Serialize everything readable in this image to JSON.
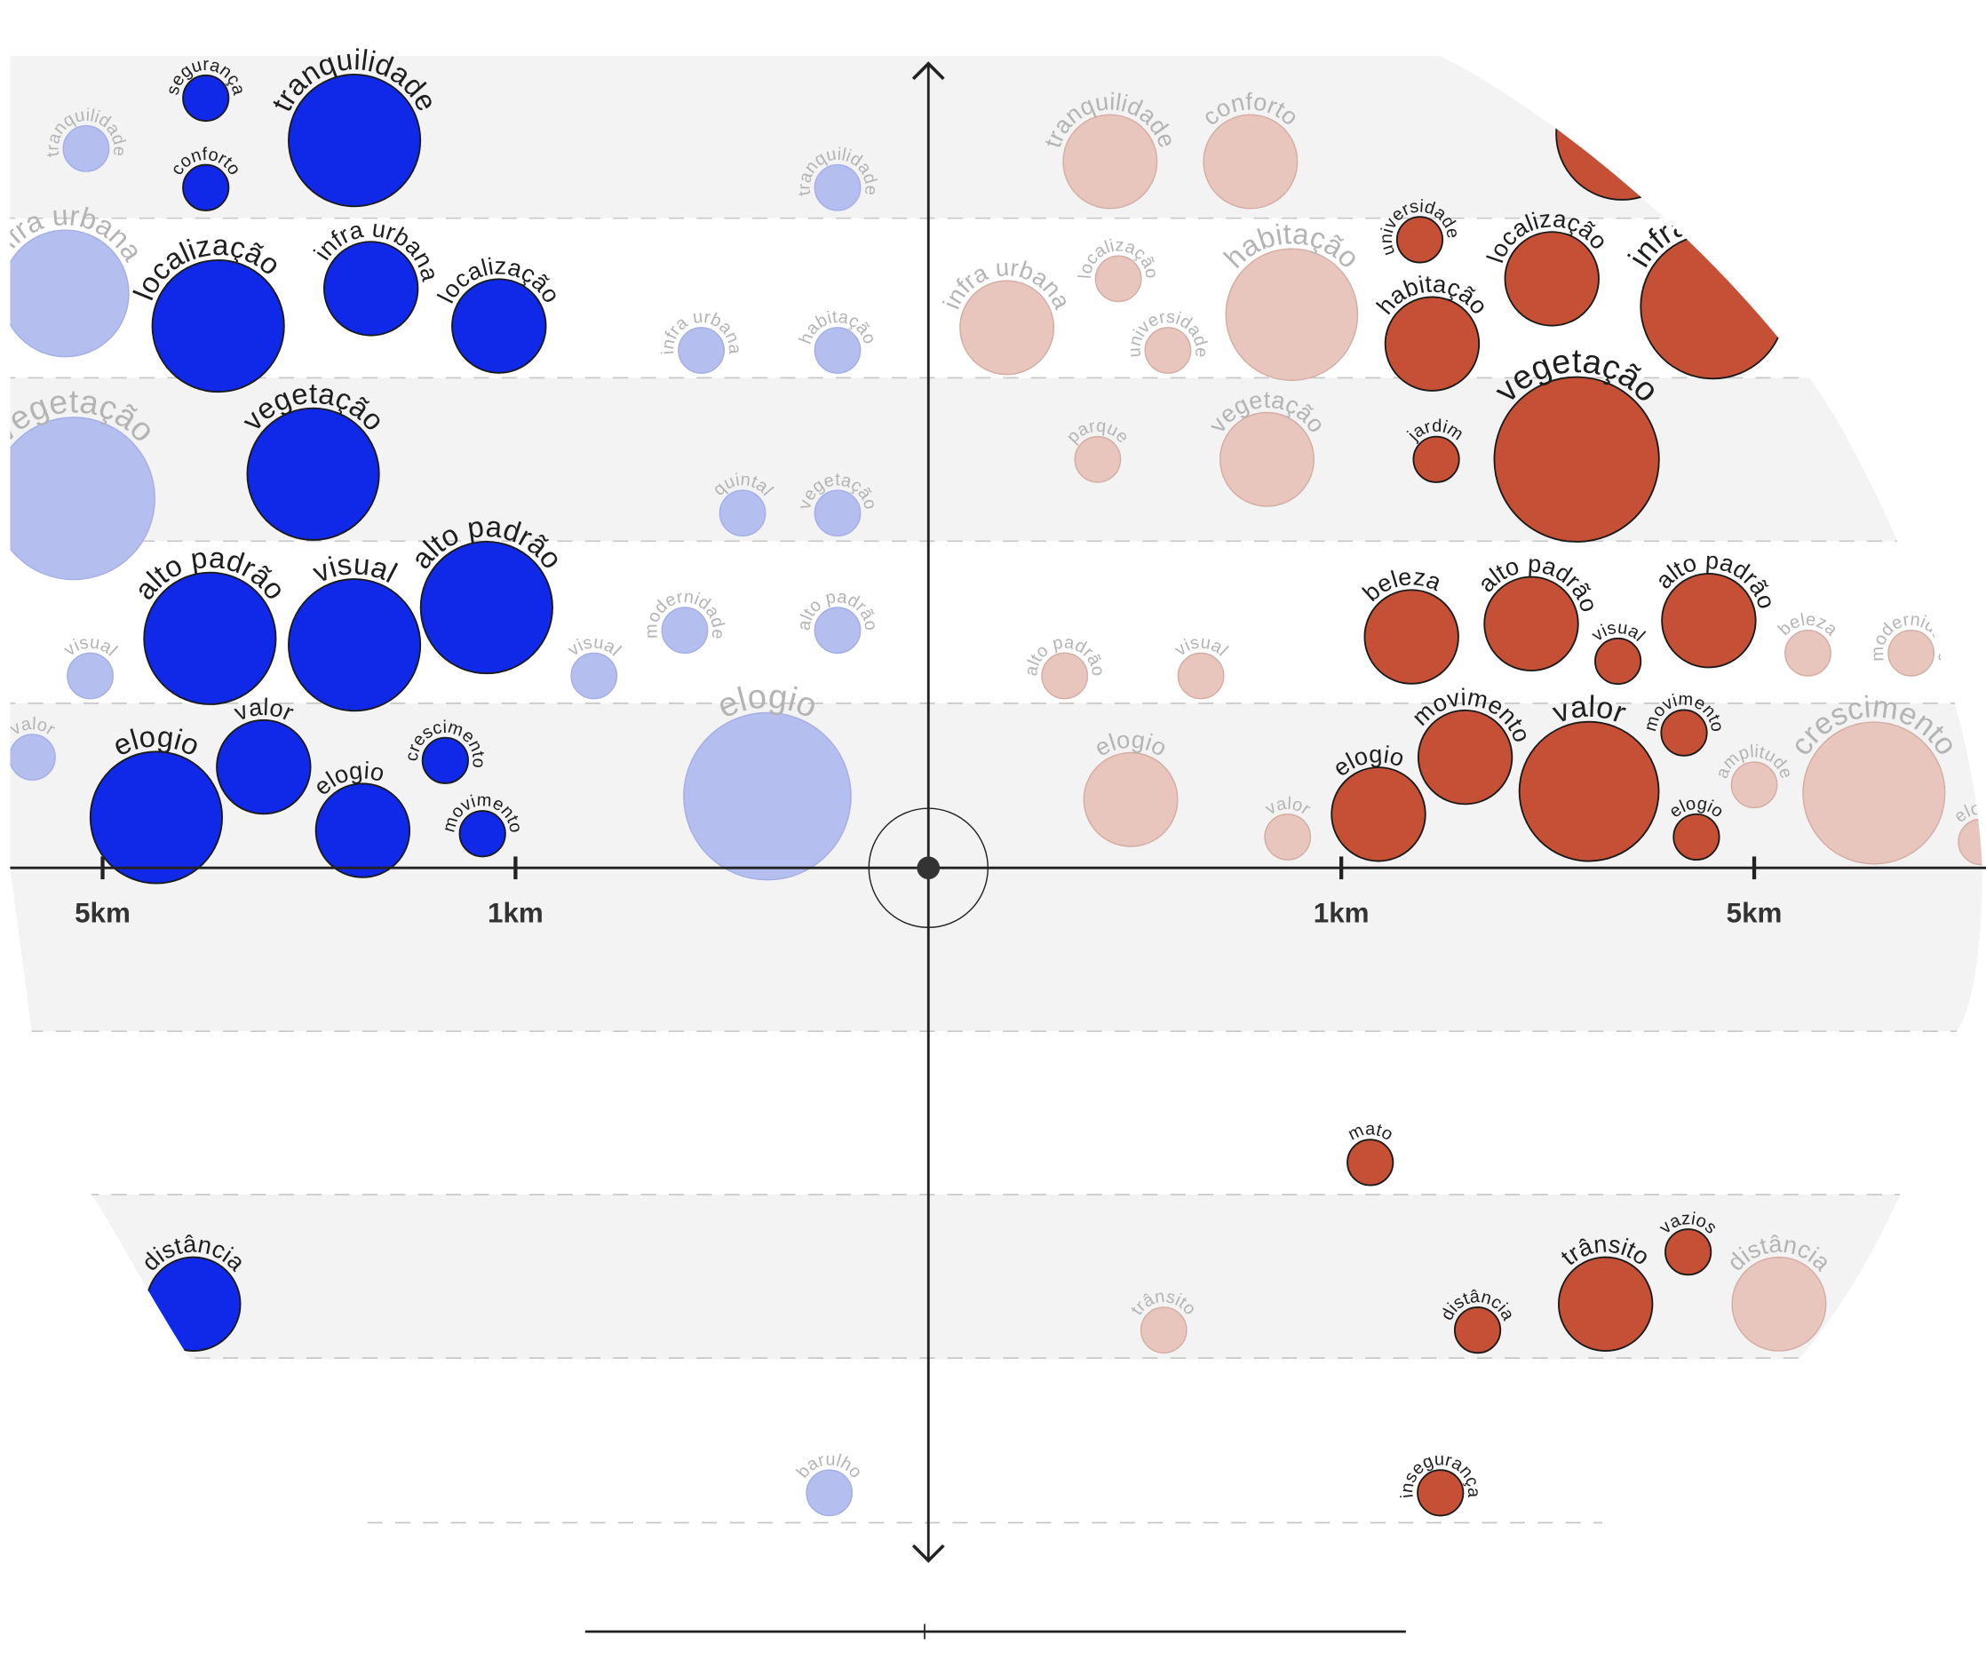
{
  "chart_data": {
    "type": "scatter",
    "subtype": "bubble",
    "title": "",
    "xlabel": "",
    "ylabel": "",
    "x_scale_note": "distance from center; ticks at 1km and 5km on each side",
    "x_ticks": [
      {
        "value": -2,
        "label": "5km"
      },
      {
        "value": -1,
        "label": "1km"
      },
      {
        "value": 1,
        "label": "1km"
      },
      {
        "value": 2,
        "label": "5km"
      }
    ],
    "xlim": [
      -2.25,
      2.55
    ],
    "ylim": [
      -4.1,
      5.0
    ],
    "grid": "dashed horizontal bands",
    "colors": {
      "left_strong": "#1029e8",
      "left_faint": "#b4bff0",
      "right_strong": "#c55035",
      "right_faint": "#e8c6bd",
      "band": "#f3f3f3",
      "label_strong": "#1e1e1e",
      "label_faint": "#b4b4b4"
    },
    "bubbles": [
      {
        "label": "tranquilidade",
        "x": -2.04,
        "y": 4.42,
        "size": 1.8,
        "strong": false
      },
      {
        "label": "segurança",
        "x": -1.75,
        "y": 4.73,
        "size": 1.8,
        "strong": true
      },
      {
        "label": "conforto",
        "x": -1.75,
        "y": 4.18,
        "size": 1.8,
        "strong": true
      },
      {
        "label": "tranquilidade",
        "x": -1.39,
        "y": 4.47,
        "size": 5.2,
        "strong": true
      },
      {
        "label": "infra urbana",
        "x": -2.09,
        "y": 3.53,
        "size": 5.0,
        "strong": false
      },
      {
        "label": "localização",
        "x": -1.72,
        "y": 3.33,
        "size": 5.2,
        "strong": true
      },
      {
        "label": "infra urbana",
        "x": -1.35,
        "y": 3.56,
        "size": 3.7,
        "strong": true
      },
      {
        "label": "localização",
        "x": -1.04,
        "y": 3.33,
        "size": 3.7,
        "strong": true
      },
      {
        "label": "tranquilidade",
        "x": -0.22,
        "y": 4.18,
        "size": 1.8,
        "strong": false
      },
      {
        "label": "infra urbana",
        "x": -0.55,
        "y": 3.18,
        "size": 1.8,
        "strong": false
      },
      {
        "label": "habitação",
        "x": -0.22,
        "y": 3.18,
        "size": 1.8,
        "strong": false
      },
      {
        "label": "vegetação",
        "x": -2.07,
        "y": 2.27,
        "size": 6.4,
        "strong": false
      },
      {
        "label": "vegetação",
        "x": -1.49,
        "y": 2.42,
        "size": 5.2,
        "strong": true
      },
      {
        "label": "quintal",
        "x": -0.45,
        "y": 2.18,
        "size": 1.8,
        "strong": false
      },
      {
        "label": "vegetação",
        "x": -0.22,
        "y": 2.18,
        "size": 1.8,
        "strong": false
      },
      {
        "label": "alto padrão",
        "x": -1.74,
        "y": 1.41,
        "size": 5.2,
        "strong": true
      },
      {
        "label": "visual",
        "x": -1.39,
        "y": 1.37,
        "size": 5.2,
        "strong": true
      },
      {
        "label": "alto padrão",
        "x": -1.07,
        "y": 1.6,
        "size": 5.2,
        "strong": true
      },
      {
        "label": "visual",
        "x": -2.03,
        "y": 1.18,
        "size": 1.8,
        "strong": false
      },
      {
        "label": "visual",
        "x": -0.81,
        "y": 1.18,
        "size": 1.8,
        "strong": false
      },
      {
        "label": "modernidade",
        "x": -0.59,
        "y": 1.46,
        "size": 1.8,
        "strong": false
      },
      {
        "label": "alto padrão",
        "x": -0.22,
        "y": 1.46,
        "size": 1.8,
        "strong": false
      },
      {
        "label": "valor",
        "x": -2.17,
        "y": 0.68,
        "size": 1.8,
        "strong": false
      },
      {
        "label": "elogio",
        "x": -1.87,
        "y": 0.31,
        "size": 5.2,
        "strong": true
      },
      {
        "label": "valor",
        "x": -1.61,
        "y": 0.62,
        "size": 3.7,
        "strong": true
      },
      {
        "label": "elogio",
        "x": -1.37,
        "y": 0.23,
        "size": 3.7,
        "strong": true
      },
      {
        "label": "crescimento",
        "x": -1.17,
        "y": 0.66,
        "size": 1.8,
        "strong": true
      },
      {
        "label": "movimento",
        "x": -1.08,
        "y": 0.21,
        "size": 1.8,
        "strong": true
      },
      {
        "label": "elogio",
        "x": -0.39,
        "y": 0.44,
        "size": 6.6,
        "strong": false
      },
      {
        "label": "distância",
        "x": -1.78,
        "y": -2.68,
        "size": 3.7,
        "strong": true
      },
      {
        "label": "barulho",
        "x": -0.24,
        "y": -3.84,
        "size": 1.8,
        "strong": false
      },
      {
        "label": "tranquilidade",
        "x": 0.44,
        "y": 4.34,
        "size": 3.7,
        "strong": false
      },
      {
        "label": "conforto",
        "x": 0.78,
        "y": 4.34,
        "size": 3.7,
        "strong": false
      },
      {
        "label": "",
        "x": 1.68,
        "y": 4.51,
        "size": 5.2,
        "strong": true
      },
      {
        "label": "infra urbana",
        "x": 0.19,
        "y": 3.32,
        "size": 3.7,
        "strong": false
      },
      {
        "label": "localização",
        "x": 0.46,
        "y": 3.62,
        "size": 1.8,
        "strong": false
      },
      {
        "label": "universidade",
        "x": 0.58,
        "y": 3.18,
        "size": 1.8,
        "strong": false
      },
      {
        "label": "habitação",
        "x": 0.88,
        "y": 3.4,
        "size": 5.2,
        "strong": false
      },
      {
        "label": "universidade",
        "x": 1.19,
        "y": 3.86,
        "size": 1.8,
        "strong": true
      },
      {
        "label": "habitação",
        "x": 1.22,
        "y": 3.22,
        "size": 3.7,
        "strong": true
      },
      {
        "label": "localização",
        "x": 1.51,
        "y": 3.62,
        "size": 3.7,
        "strong": true
      },
      {
        "label": "infra urbana",
        "x": 1.9,
        "y": 3.45,
        "size": 5.7,
        "strong": true
      },
      {
        "label": "parque",
        "x": 0.41,
        "y": 2.51,
        "size": 1.8,
        "strong": false
      },
      {
        "label": "vegetação",
        "x": 0.82,
        "y": 2.51,
        "size": 3.7,
        "strong": false
      },
      {
        "label": "jardim",
        "x": 1.23,
        "y": 2.51,
        "size": 1.8,
        "strong": true
      },
      {
        "label": "vegetação",
        "x": 1.57,
        "y": 2.51,
        "size": 6.5,
        "strong": true
      },
      {
        "label": "beleza",
        "x": 1.17,
        "y": 1.42,
        "size": 3.7,
        "strong": true
      },
      {
        "label": "alto padrão",
        "x": 1.46,
        "y": 1.5,
        "size": 3.7,
        "strong": true
      },
      {
        "label": "visual",
        "x": 1.67,
        "y": 1.27,
        "size": 1.8,
        "strong": true
      },
      {
        "label": "alto padrão",
        "x": 1.89,
        "y": 1.52,
        "size": 3.7,
        "strong": true
      },
      {
        "label": "beleza",
        "x": 2.13,
        "y": 1.32,
        "size": 1.8,
        "strong": false
      },
      {
        "label": "modernidade",
        "x": 2.38,
        "y": 1.32,
        "size": 1.8,
        "strong": false
      },
      {
        "label": "alto padrão",
        "x": 0.33,
        "y": 1.18,
        "size": 1.8,
        "strong": false
      },
      {
        "label": "visual",
        "x": 0.66,
        "y": 1.18,
        "size": 1.8,
        "strong": false
      },
      {
        "label": "elogio",
        "x": 0.49,
        "y": 0.42,
        "size": 3.7,
        "strong": false
      },
      {
        "label": "valor",
        "x": 0.87,
        "y": 0.19,
        "size": 1.8,
        "strong": false
      },
      {
        "label": "elogio",
        "x": 1.09,
        "y": 0.33,
        "size": 3.7,
        "strong": true
      },
      {
        "label": "movimento",
        "x": 1.3,
        "y": 0.68,
        "size": 3.7,
        "strong": true
      },
      {
        "label": "valor",
        "x": 1.6,
        "y": 0.47,
        "size": 5.5,
        "strong": true
      },
      {
        "label": "movimento",
        "x": 1.83,
        "y": 0.83,
        "size": 1.8,
        "strong": true
      },
      {
        "label": "elogio",
        "x": 1.86,
        "y": 0.19,
        "size": 1.8,
        "strong": true
      },
      {
        "label": "amplitude",
        "x": 2.0,
        "y": 0.51,
        "size": 1.8,
        "strong": false
      },
      {
        "label": "crescimento",
        "x": 2.29,
        "y": 0.46,
        "size": 5.6,
        "strong": false
      },
      {
        "label": "elogio",
        "x": 2.55,
        "y": 0.16,
        "size": 1.8,
        "strong": false
      },
      {
        "label": "mato",
        "x": 1.07,
        "y": -1.81,
        "size": 1.8,
        "strong": true
      },
      {
        "label": "trânsito",
        "x": 0.57,
        "y": -2.84,
        "size": 1.8,
        "strong": false
      },
      {
        "label": "distância",
        "x": 1.33,
        "y": -2.84,
        "size": 1.8,
        "strong": true
      },
      {
        "label": "trânsito",
        "x": 1.64,
        "y": -2.68,
        "size": 3.7,
        "strong": true
      },
      {
        "label": "vazios",
        "x": 1.84,
        "y": -2.36,
        "size": 1.8,
        "strong": true
      },
      {
        "label": "distância",
        "x": 2.06,
        "y": -2.68,
        "size": 3.7,
        "strong": false
      },
      {
        "label": "insegurança",
        "x": 1.24,
        "y": -3.84,
        "size": 1.8,
        "strong": true
      }
    ]
  }
}
